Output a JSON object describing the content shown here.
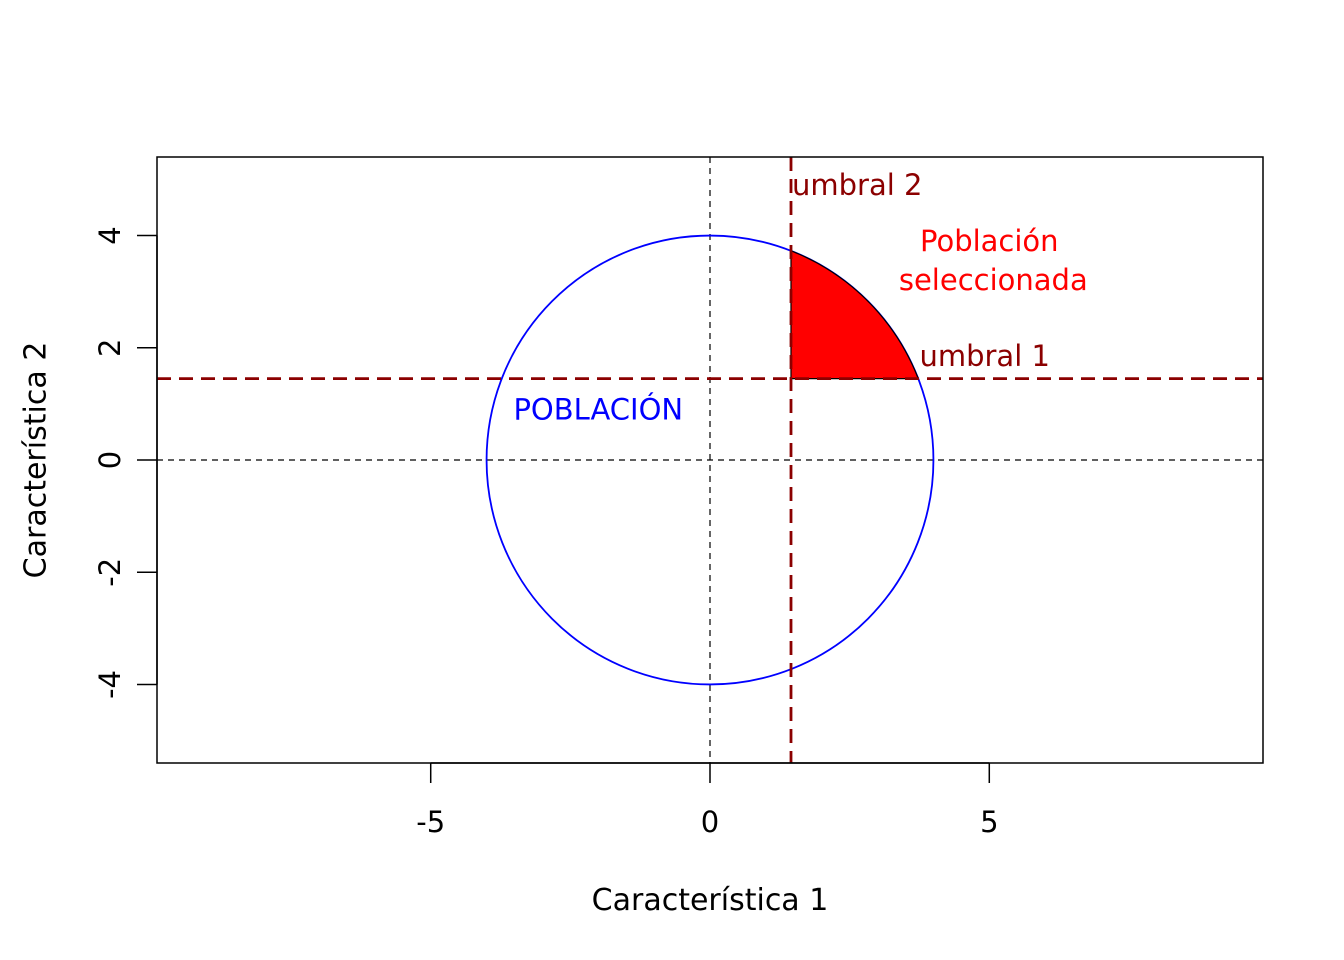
{
  "chart_data": {
    "type": "scatter",
    "title": "",
    "xlabel": "Característica 1",
    "ylabel": "Característica 2",
    "xlim": [
      -9.9,
      9.9
    ],
    "ylim": [
      -5.4,
      5.4
    ],
    "x_ticks": [
      -5,
      0,
      5
    ],
    "y_ticks": [
      -4,
      -2,
      0,
      2,
      4
    ],
    "grid": false,
    "population_circle": {
      "center": [
        0,
        0
      ],
      "radius": 4,
      "color": "#0000ff"
    },
    "reference_lines": {
      "x": 0,
      "y": 0,
      "color": "#000000"
    },
    "threshold_1": {
      "label": "umbral 1",
      "axis": "y",
      "value": 1.45,
      "color": "#8b0000"
    },
    "threshold_2": {
      "label": "umbral 2",
      "axis": "x",
      "value": 1.45,
      "color": "#8b0000"
    },
    "selected_region": {
      "fill": "#ff0000",
      "stroke": "#000000"
    },
    "annotations": {
      "population": {
        "text": "POBLACIÓN",
        "x": -2.0,
        "y": 0.9,
        "color": "#0000ff"
      },
      "selected": {
        "line1": "Población",
        "line2": "seleccionada",
        "x": 5.0,
        "y": 3.9,
        "color": "#ff0000"
      },
      "umbral_1": {
        "x": 3.75,
        "y": 1.85
      },
      "umbral_2": {
        "x": 1.45,
        "y": 4.9
      }
    }
  }
}
